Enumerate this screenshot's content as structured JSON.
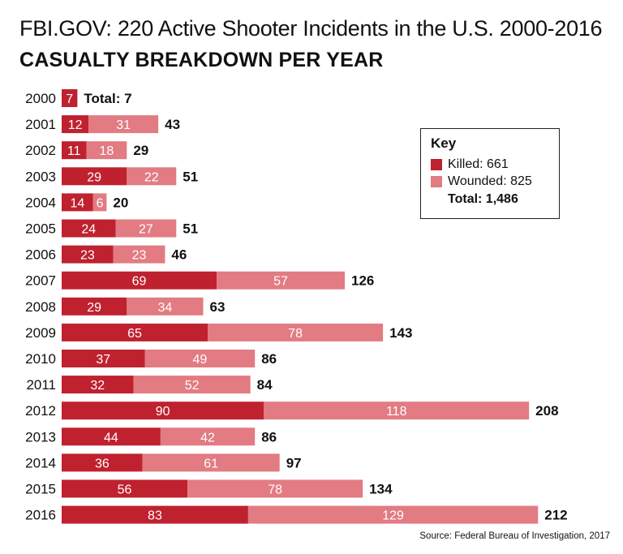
{
  "header": {
    "title": "FBI.GOV: 220 Active Shooter Incidents in the U.S. 2000-2016",
    "subtitle": "CASUALTY BREAKDOWN PER YEAR"
  },
  "legend": {
    "title": "Key",
    "killed_label": "Killed: 661",
    "wounded_label": "Wounded: 825",
    "total_label": "Total: 1,486"
  },
  "source": "Source: Federal Bureau of Investigation, 2017",
  "colors": {
    "killed": "#c0212f",
    "wounded": "#e27b82",
    "text_dark": "#111111"
  },
  "chart_data": {
    "type": "bar",
    "orientation": "horizontal",
    "stacked": true,
    "title": "FBI.GOV: 220 Active Shooter Incidents in the U.S. 2000-2016",
    "subtitle": "CASUALTY BREAKDOWN PER YEAR",
    "categories": [
      "2000",
      "2001",
      "2002",
      "2003",
      "2004",
      "2005",
      "2006",
      "2007",
      "2008",
      "2009",
      "2010",
      "2011",
      "2012",
      "2013",
      "2014",
      "2015",
      "2016"
    ],
    "series": [
      {
        "name": "Killed",
        "values": [
          7,
          12,
          11,
          29,
          14,
          24,
          23,
          69,
          29,
          65,
          37,
          32,
          90,
          44,
          36,
          56,
          83
        ]
      },
      {
        "name": "Wounded",
        "values": [
          0,
          31,
          18,
          22,
          6,
          27,
          23,
          57,
          34,
          78,
          49,
          52,
          118,
          42,
          61,
          78,
          129
        ]
      }
    ],
    "totals": [
      7,
      43,
      29,
      51,
      20,
      51,
      46,
      126,
      63,
      143,
      86,
      84,
      208,
      86,
      97,
      134,
      212
    ],
    "total_labels": [
      "Total: 7",
      "43",
      "29",
      "51",
      "20",
      "51",
      "46",
      "126",
      "63",
      "143",
      "86",
      "84",
      "208",
      "86",
      "97",
      "134",
      "212"
    ],
    "legend_placement": "top-right",
    "grid": false
  }
}
